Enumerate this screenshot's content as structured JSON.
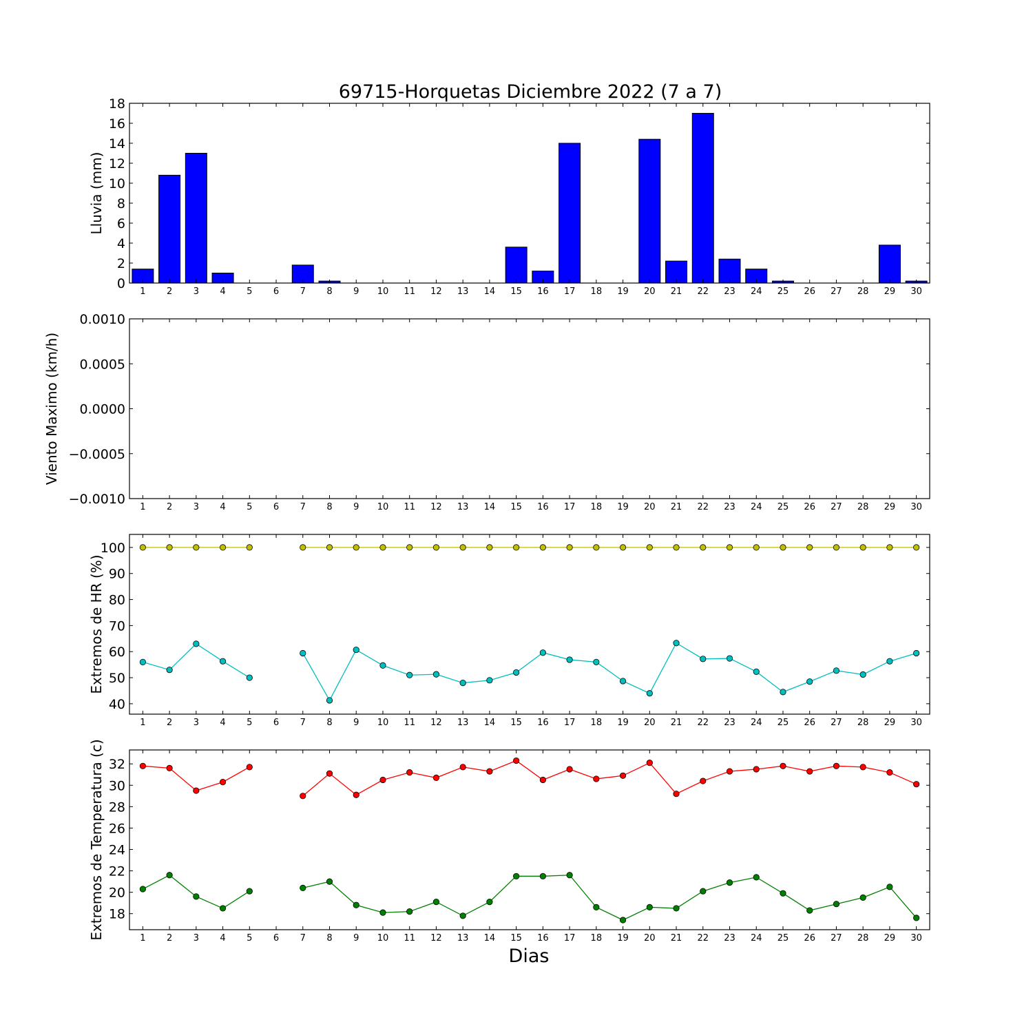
{
  "title": "69715-Horquetas Diciembre 2022  (7 a 7)",
  "xlabel": "Dias",
  "days": [
    1,
    2,
    3,
    4,
    5,
    6,
    7,
    8,
    9,
    10,
    11,
    12,
    13,
    14,
    15,
    16,
    17,
    18,
    19,
    20,
    21,
    22,
    23,
    24,
    25,
    26,
    27,
    28,
    29,
    30
  ],
  "chart_data": [
    {
      "type": "bar",
      "ylabel": "Lluvia (mm)",
      "ylim": [
        0,
        18
      ],
      "yticks": [
        0,
        2,
        4,
        6,
        8,
        10,
        12,
        14,
        16,
        18
      ],
      "ytick_labels": [
        "0",
        "2",
        "4",
        "6",
        "8",
        "10",
        "12",
        "14",
        "16",
        "18"
      ],
      "categories": [
        1,
        2,
        3,
        4,
        5,
        6,
        7,
        8,
        9,
        10,
        11,
        12,
        13,
        14,
        15,
        16,
        17,
        18,
        19,
        20,
        21,
        22,
        23,
        24,
        25,
        26,
        27,
        28,
        29,
        30
      ],
      "series": [
        {
          "color": "#0000ff",
          "values": [
            1.4,
            10.8,
            13.0,
            1.0,
            0.0,
            0.0,
            1.8,
            0.2,
            0.0,
            0.0,
            0.0,
            0.0,
            0.0,
            0.0,
            3.6,
            1.2,
            14.0,
            0.0,
            0.0,
            14.4,
            2.2,
            17.0,
            2.4,
            1.4,
            0.2,
            0.0,
            0.0,
            0.0,
            3.8,
            0.2
          ]
        }
      ]
    },
    {
      "type": "line",
      "ylabel": "Viento Maximo (km/h)",
      "ylim": [
        -0.001,
        0.001
      ],
      "yticks": [
        -0.001,
        -0.0005,
        0.0,
        0.0005,
        0.001
      ],
      "ytick_labels": [
        "−0.0010",
        "−0.0005",
        "0.0000",
        "0.0005",
        "0.0010"
      ],
      "x": [
        1,
        2,
        3,
        4,
        5,
        6,
        7,
        8,
        9,
        10,
        11,
        12,
        13,
        14,
        15,
        16,
        17,
        18,
        19,
        20,
        21,
        22,
        23,
        24,
        25,
        26,
        27,
        28,
        29,
        30
      ],
      "series": []
    },
    {
      "type": "line",
      "ylabel": "Extremos de HR (%)",
      "ylim": [
        36,
        105
      ],
      "yticks": [
        40,
        50,
        60,
        70,
        80,
        90,
        100
      ],
      "ytick_labels": [
        "40",
        "50",
        "60",
        "70",
        "80",
        "90",
        "100"
      ],
      "x": [
        1,
        2,
        3,
        4,
        5,
        6,
        7,
        8,
        9,
        10,
        11,
        12,
        13,
        14,
        15,
        16,
        17,
        18,
        19,
        20,
        21,
        22,
        23,
        24,
        25,
        26,
        27,
        28,
        29,
        30
      ],
      "series": [
        {
          "color": "#bfbf00",
          "values": [
            100,
            100,
            100,
            100,
            100,
            null,
            100,
            100,
            100,
            100,
            100,
            100,
            100,
            100,
            100,
            100,
            100,
            100,
            100,
            100,
            100,
            100,
            100,
            100,
            100,
            100,
            100,
            100,
            100,
            100
          ]
        },
        {
          "color": "#00bfbf",
          "values": [
            56,
            53,
            63,
            56.3,
            50,
            null,
            59.4,
            41.3,
            60.7,
            54.7,
            51,
            51.3,
            48,
            49,
            52,
            59.6,
            56.9,
            56,
            48.7,
            44,
            63.3,
            57.2,
            57.4,
            52.3,
            44.5,
            48.5,
            52.7,
            51.2,
            56.3,
            59.4
          ]
        }
      ]
    },
    {
      "type": "line",
      "ylabel": "Extremos de Temperatura (c)",
      "ylim": [
        16.5,
        33.3
      ],
      "yticks": [
        18,
        20,
        22,
        24,
        26,
        28,
        30,
        32
      ],
      "ytick_labels": [
        "18",
        "20",
        "22",
        "24",
        "26",
        "28",
        "30",
        "32"
      ],
      "x": [
        1,
        2,
        3,
        4,
        5,
        6,
        7,
        8,
        9,
        10,
        11,
        12,
        13,
        14,
        15,
        16,
        17,
        18,
        19,
        20,
        21,
        22,
        23,
        24,
        25,
        26,
        27,
        28,
        29,
        30
      ],
      "series": [
        {
          "color": "#ff0000",
          "values": [
            31.8,
            31.6,
            29.5,
            30.3,
            31.7,
            null,
            29.0,
            31.1,
            29.1,
            30.5,
            31.2,
            30.7,
            31.7,
            31.3,
            32.3,
            30.5,
            31.5,
            30.6,
            30.9,
            32.1,
            29.2,
            30.4,
            31.3,
            31.5,
            31.8,
            31.3,
            31.8,
            31.7,
            31.2,
            30.1
          ]
        },
        {
          "color": "#008000",
          "values": [
            20.3,
            21.6,
            19.6,
            18.5,
            20.1,
            null,
            20.4,
            21.0,
            18.8,
            18.1,
            18.2,
            19.1,
            17.8,
            19.1,
            21.5,
            21.5,
            21.6,
            18.6,
            17.4,
            18.6,
            18.5,
            20.1,
            20.9,
            21.4,
            19.9,
            18.3,
            18.9,
            19.5,
            20.5,
            17.6
          ]
        }
      ]
    }
  ]
}
